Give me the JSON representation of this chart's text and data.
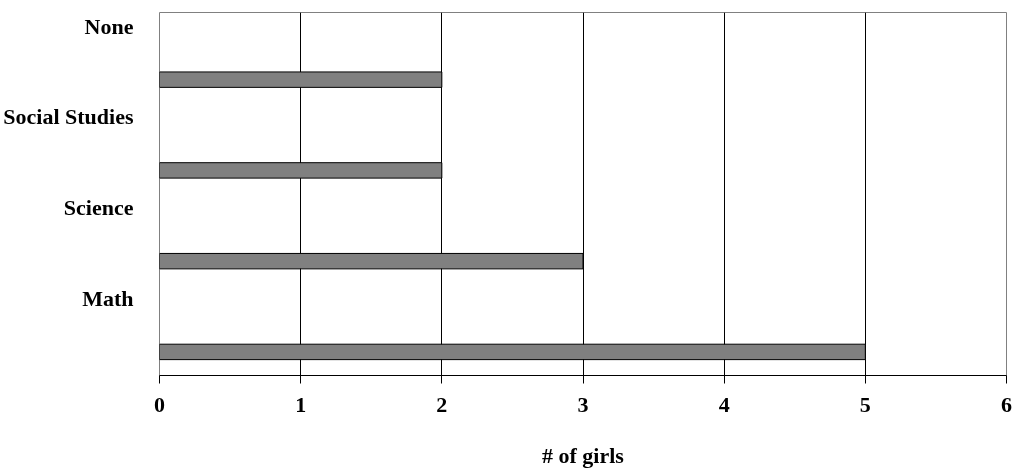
{
  "chart_data": {
    "type": "bar",
    "orientation": "horizontal",
    "xlabel": "# of girls",
    "categories": [
      "None",
      "Social Studies",
      "Science",
      "Math"
    ],
    "values": [
      2,
      2,
      3,
      5
    ],
    "color": "#808080",
    "xlim": [
      0,
      6
    ],
    "xticks": [
      0,
      1,
      2,
      3,
      4,
      5,
      6
    ],
    "grid": "x"
  }
}
